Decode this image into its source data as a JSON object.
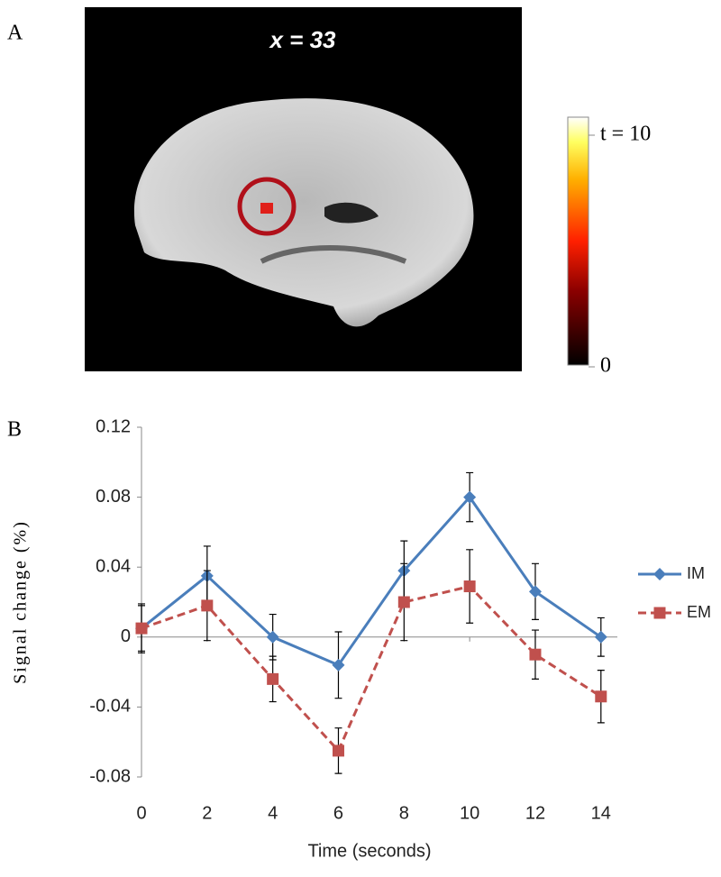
{
  "panel_a": {
    "label": "A",
    "image_label": "x = 33",
    "colorbar": {
      "clim": [
        0,
        10
      ],
      "ticks": [
        {
          "value": 10,
          "label": "t = 10"
        },
        0
      ]
    }
  },
  "chart_data": {
    "type": "line",
    "panel_label": "B",
    "x_label": "Time (seconds)",
    "y_label": "Signal change (%)",
    "x": [
      0,
      2,
      4,
      6,
      8,
      10,
      12,
      14
    ],
    "series": [
      {
        "name": "IM",
        "color": "#4a7ebb",
        "marker": "diamond",
        "dash": false,
        "values": [
          0.005,
          0.035,
          0,
          -0.016,
          0.038,
          0.08,
          0.026,
          0
        ],
        "errors": [
          0.013,
          0.017,
          0.013,
          0.019,
          0.017,
          0.014,
          0.016,
          0.011
        ]
      },
      {
        "name": "EM",
        "color": "#c0504d",
        "marker": "square",
        "dash": true,
        "values": [
          0.005,
          0.018,
          -0.024,
          -0.065,
          0.02,
          0.029,
          -0.01,
          -0.034
        ],
        "errors": [
          0.014,
          0.02,
          0.013,
          0.013,
          0.022,
          0.021,
          0.014,
          0.015
        ]
      }
    ],
    "xlim": [
      0,
      14.5
    ],
    "xticks": [
      0,
      2,
      4,
      6,
      8,
      10,
      12,
      14
    ],
    "ylim": [
      -0.08,
      0.12
    ],
    "yticks": [
      0.12,
      0.08,
      0.04,
      0,
      -0.04,
      -0.08
    ],
    "legend": "right"
  }
}
